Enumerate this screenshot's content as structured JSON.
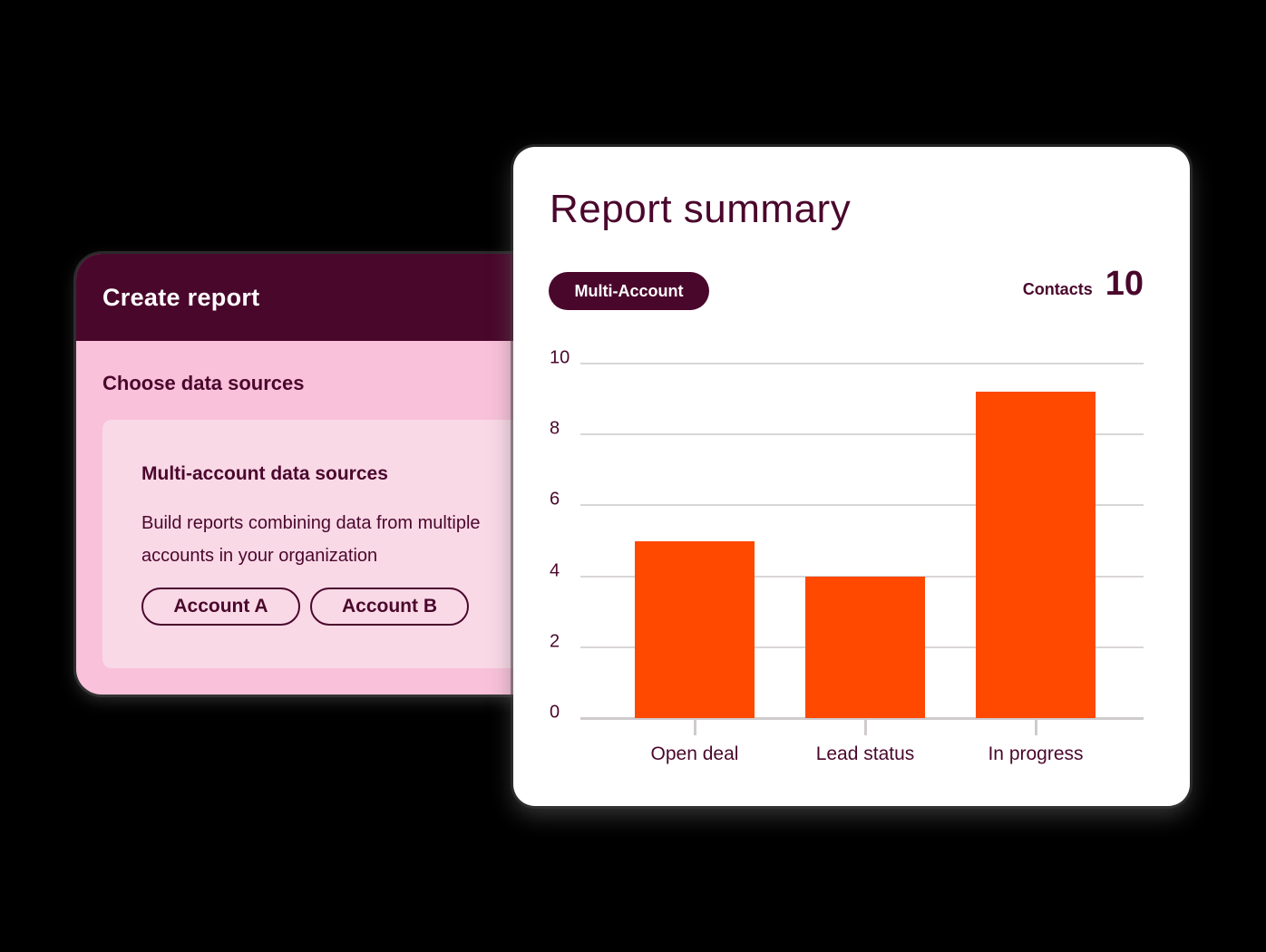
{
  "create_report": {
    "title": "Create report",
    "section_label": "Choose data sources",
    "card": {
      "title": "Multi-account data sources",
      "description": "Build reports combining data from multiple accounts in your organization",
      "accounts": [
        "Account A",
        "Account B"
      ]
    }
  },
  "report_summary": {
    "title": "Report summary",
    "badge": "Multi-Account",
    "contacts_label": "Contacts",
    "contacts_value": "10"
  },
  "colors": {
    "brand_dark": "#4a072c",
    "bar": "#ff4800",
    "pink": "#f9c1da",
    "pink_light": "#fad9e7"
  },
  "chart_data": {
    "type": "bar",
    "title": "Report summary",
    "categories": [
      "Open deal",
      "Lead status",
      "In progress"
    ],
    "values": [
      5,
      4,
      9.2
    ],
    "xlabel": "",
    "ylabel": "",
    "ylim": [
      0,
      10
    ],
    "yticks": [
      0,
      2,
      4,
      6,
      8,
      10
    ],
    "grid": true,
    "legend": null
  }
}
